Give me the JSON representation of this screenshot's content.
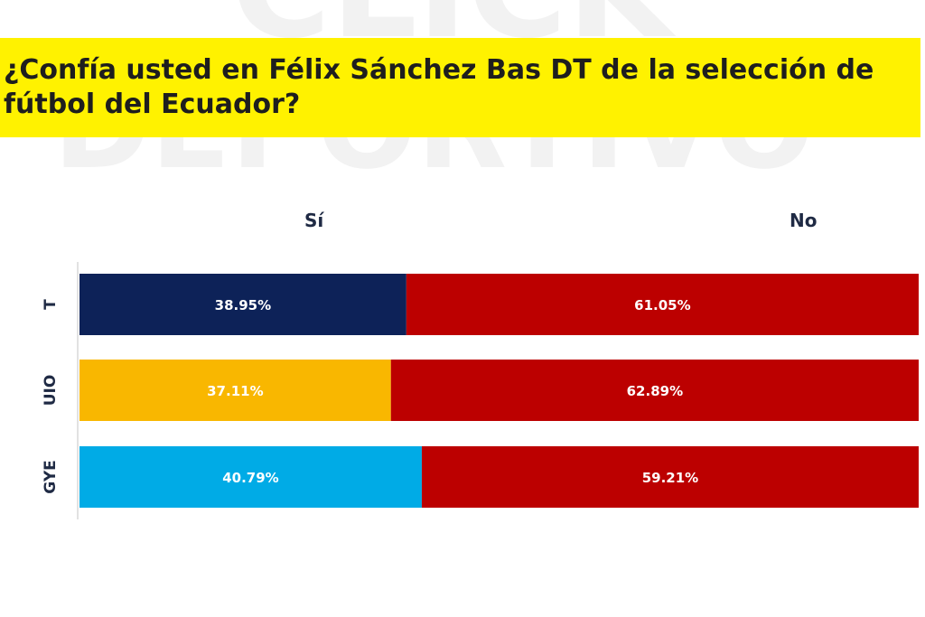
{
  "title": "¿Confía usted en Félix Sánchez Bas DT de la selección de fútbol del Ecuador?",
  "watermark_text": "CLICK DEPORTIVO",
  "chart_data": {
    "type": "bar",
    "orientation": "horizontal",
    "stacked": true,
    "categories": [
      "T",
      "UIO",
      "GYE"
    ],
    "series": [
      {
        "name": "Sí",
        "values": [
          38.95,
          37.11,
          40.79
        ],
        "labels": [
          "38.95%",
          "37.11%",
          "40.79%"
        ],
        "colors": [
          "#0d2258",
          "#f9b700",
          "#00abe6"
        ]
      },
      {
        "name": "No",
        "values": [
          61.05,
          62.89,
          59.21
        ],
        "labels": [
          "61.05%",
          "62.89%",
          "59.21%"
        ],
        "colors": [
          "#bc0000",
          "#bc0000",
          "#bc0000"
        ]
      }
    ],
    "xlim": [
      0,
      100
    ],
    "legend": "top",
    "grid": false
  }
}
